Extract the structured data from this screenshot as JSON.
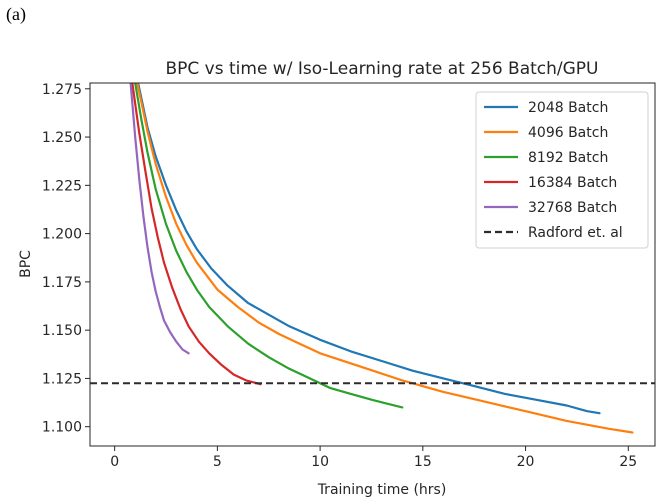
{
  "panel_label": "(a)",
  "chart_data": {
    "type": "line",
    "title": "BPC vs time w/ Iso-Learning rate at 256 Batch/GPU",
    "xlabel": "Training time (hrs)",
    "ylabel": "BPC",
    "xlim": [
      -1.2,
      26.3
    ],
    "ylim": [
      1.09,
      1.278
    ],
    "xticks": [
      0,
      5,
      10,
      15,
      20,
      25
    ],
    "xtick_labels": [
      "0",
      "5",
      "10",
      "15",
      "20",
      "25"
    ],
    "yticks": [
      1.1,
      1.125,
      1.15,
      1.175,
      1.2,
      1.225,
      1.25,
      1.275
    ],
    "ytick_labels": [
      "1.100",
      "1.125",
      "1.150",
      "1.175",
      "1.200",
      "1.225",
      "1.250",
      "1.275"
    ],
    "grid": false,
    "legend_placement": "upper right",
    "series": [
      {
        "name": "2048 Batch",
        "color": "#1f77b4",
        "x": [
          0.7,
          1.0,
          1.3,
          1.6,
          2.0,
          2.5,
          3.0,
          3.5,
          4.0,
          4.7,
          5.5,
          6.5,
          7.5,
          8.5,
          10.0,
          11.5,
          13.0,
          14.5,
          16.0,
          17.5,
          19.0,
          20.5,
          22.0,
          23.0,
          23.6
        ],
        "y": [
          1.3,
          1.285,
          1.27,
          1.255,
          1.24,
          1.225,
          1.212,
          1.201,
          1.192,
          1.182,
          1.173,
          1.164,
          1.158,
          1.152,
          1.145,
          1.139,
          1.134,
          1.129,
          1.125,
          1.121,
          1.117,
          1.114,
          1.111,
          1.108,
          1.107
        ]
      },
      {
        "name": "4096 Batch",
        "color": "#ff7f0e",
        "x": [
          0.7,
          1.0,
          1.3,
          1.6,
          2.0,
          2.5,
          3.0,
          3.5,
          4.0,
          5.0,
          6.0,
          7.0,
          8.0,
          9.0,
          10.0,
          12.0,
          14.0,
          16.0,
          18.0,
          20.0,
          22.0,
          24.0,
          25.2
        ],
        "y": [
          1.3,
          1.283,
          1.268,
          1.253,
          1.236,
          1.219,
          1.205,
          1.194,
          1.185,
          1.171,
          1.162,
          1.154,
          1.148,
          1.143,
          1.138,
          1.131,
          1.124,
          1.118,
          1.113,
          1.108,
          1.103,
          1.099,
          1.097
        ]
      },
      {
        "name": "8192 Batch",
        "color": "#2ca02c",
        "x": [
          0.7,
          1.0,
          1.3,
          1.6,
          2.0,
          2.5,
          3.0,
          3.5,
          4.0,
          4.6,
          5.5,
          6.5,
          7.5,
          8.5,
          9.5,
          10.5,
          11.5,
          12.5,
          14.0
        ],
        "y": [
          1.3,
          1.278,
          1.259,
          1.242,
          1.223,
          1.205,
          1.191,
          1.18,
          1.171,
          1.162,
          1.152,
          1.143,
          1.136,
          1.13,
          1.125,
          1.12,
          1.117,
          1.114,
          1.11
        ]
      },
      {
        "name": "16384 Batch",
        "color": "#d62728",
        "x": [
          0.6,
          0.9,
          1.2,
          1.5,
          1.8,
          2.1,
          2.4,
          2.8,
          3.2,
          3.6,
          4.1,
          4.6,
          5.2,
          5.8,
          6.4,
          7.1
        ],
        "y": [
          1.3,
          1.275,
          1.252,
          1.232,
          1.213,
          1.198,
          1.185,
          1.172,
          1.161,
          1.152,
          1.144,
          1.138,
          1.132,
          1.127,
          1.124,
          1.122
        ]
      },
      {
        "name": "32768 Batch",
        "color": "#9467bd",
        "x": [
          0.6,
          0.8,
          1.0,
          1.2,
          1.4,
          1.6,
          1.8,
          2.0,
          2.2,
          2.4,
          2.7,
          3.0,
          3.3,
          3.6
        ],
        "y": [
          1.3,
          1.275,
          1.25,
          1.228,
          1.209,
          1.193,
          1.18,
          1.17,
          1.162,
          1.155,
          1.149,
          1.144,
          1.14,
          1.138
        ]
      }
    ],
    "reference_line": {
      "name": "Radford et. al",
      "y": 1.1225,
      "color": "#2b2b2b",
      "style": "dashed"
    }
  }
}
